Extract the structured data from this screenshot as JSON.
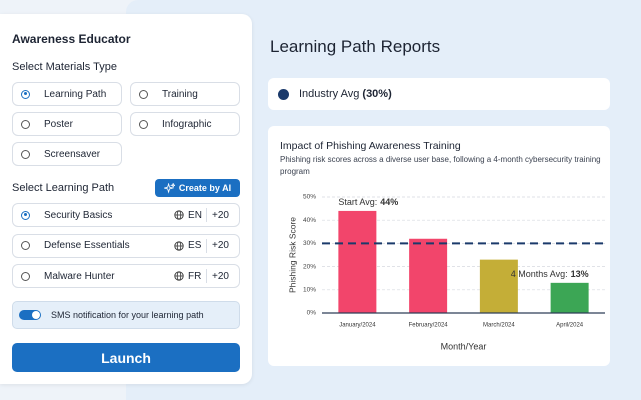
{
  "sidebar": {
    "title": "Awareness Educator",
    "materials_label": "Select Materials Type",
    "materials": [
      {
        "label": "Learning Path",
        "selected": true
      },
      {
        "label": "Training",
        "selected": false
      },
      {
        "label": "Poster",
        "selected": false
      },
      {
        "label": "Infographic",
        "selected": false
      },
      {
        "label": "Screensaver",
        "selected": false
      }
    ],
    "path_label": "Select Learning Path",
    "create_button": "Create by AI",
    "paths": [
      {
        "name": "Security Basics",
        "language": "EN",
        "extra": "+20",
        "selected": true
      },
      {
        "name": "Defense Essentials",
        "language": "ES",
        "extra": "+20",
        "selected": false
      },
      {
        "name": "Malware Hunter",
        "language": "FR",
        "extra": "+20",
        "selected": false
      }
    ],
    "sms": {
      "label": "SMS notification for your learning path",
      "enabled": true
    },
    "launch": "Launch"
  },
  "reports": {
    "title": "Learning Path Reports"
  },
  "chart_data": {
    "type": "bar",
    "title": "Impact of Phishing Awareness Training",
    "subtitle": "Phishing risk scores across a diverse user base, following a 4-month cybersecurity training program",
    "ylabel": "Phishing Risk Score",
    "xlabel": "Month/Year",
    "categories": [
      "January/2024",
      "February/2024",
      "March/2024",
      "April/2024"
    ],
    "values": [
      44,
      32,
      23,
      13
    ],
    "colors": [
      "#f2456b",
      "#f2456b",
      "#c4ae37",
      "#3ca655"
    ],
    "ylim": [
      0,
      50
    ],
    "yticks": [
      {
        "value": 0,
        "label": "0%"
      },
      {
        "value": 10,
        "label": "10%"
      },
      {
        "value": 20,
        "label": "20%"
      },
      {
        "value": 30,
        "label": "30%"
      },
      {
        "value": 40,
        "label": "40%"
      },
      {
        "value": 50,
        "label": "50%"
      }
    ],
    "grid": true,
    "reference": {
      "name": "Industry Avg",
      "value": 30,
      "value_label": "(30%)",
      "color": "#1b3a6b"
    },
    "annotations": [
      {
        "text": "Start Avg:",
        "value_label": "44%"
      },
      {
        "text": "4 Months Avg:",
        "value_label": "13%"
      }
    ]
  }
}
